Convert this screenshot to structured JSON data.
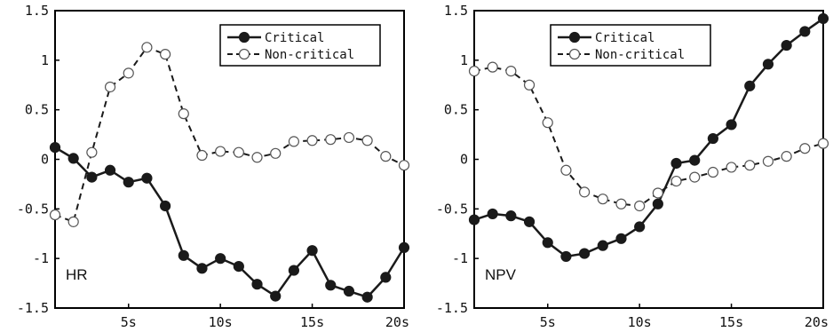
{
  "chart_data": [
    {
      "type": "line",
      "panel_label": "HR",
      "x": [
        1,
        2,
        3,
        4,
        5,
        6,
        7,
        8,
        9,
        10,
        11,
        12,
        13,
        14,
        15,
        16,
        17,
        18,
        19,
        20
      ],
      "xlim": [
        1,
        20
      ],
      "xticks": [
        5,
        10,
        15,
        20
      ],
      "xtick_labels": [
        "5s",
        "10s",
        "15s",
        "20s"
      ],
      "ylim": [
        -1.5,
        1.5
      ],
      "yticks": [
        1.5,
        1,
        0.5,
        0,
        -0.5,
        -1,
        -1.5
      ],
      "ytick_labels": [
        "1.5",
        "1",
        "0.5",
        "0",
        "-0.5",
        "-1",
        "-1.5"
      ],
      "legend_position": "top-right",
      "series": [
        {
          "name": "Critical",
          "marker": "filled-circle",
          "line": "solid",
          "values": [
            0.12,
            0.01,
            -0.18,
            -0.11,
            -0.23,
            -0.19,
            -0.47,
            -0.97,
            -1.1,
            -1.0,
            -1.08,
            -1.26,
            -1.38,
            -1.12,
            -0.92,
            -1.27,
            -1.33,
            -1.39,
            -1.19,
            -0.89
          ]
        },
        {
          "name": "Non-critical",
          "marker": "open-circle",
          "line": "dashed",
          "values": [
            -0.56,
            -0.63,
            0.07,
            0.73,
            0.87,
            1.13,
            1.06,
            0.46,
            0.04,
            0.08,
            0.07,
            0.02,
            0.06,
            0.18,
            0.19,
            0.2,
            0.22,
            0.19,
            0.03,
            -0.06
          ]
        }
      ]
    },
    {
      "type": "line",
      "panel_label": "NPV",
      "x": [
        1,
        2,
        3,
        4,
        5,
        6,
        7,
        8,
        9,
        10,
        11,
        12,
        13,
        14,
        15,
        16,
        17,
        18,
        19,
        20
      ],
      "xlim": [
        1,
        20
      ],
      "xticks": [
        5,
        10,
        15,
        20
      ],
      "xtick_labels": [
        "5s",
        "10s",
        "15s",
        "20s"
      ],
      "ylim": [
        -1.5,
        1.5
      ],
      "yticks": [
        1.5,
        1,
        0.5,
        0,
        -0.5,
        -1,
        -1.5
      ],
      "ytick_labels": [
        "1.5",
        "1",
        "0.5",
        "0",
        "-0.5",
        "-1",
        "-1.5"
      ],
      "legend_position": "top-right",
      "series": [
        {
          "name": "Critical",
          "marker": "filled-circle",
          "line": "solid",
          "values": [
            -0.61,
            -0.55,
            -0.57,
            -0.63,
            -0.84,
            -0.98,
            -0.95,
            -0.87,
            -0.8,
            -0.68,
            -0.45,
            -0.04,
            -0.01,
            0.21,
            0.35,
            0.74,
            0.96,
            1.15,
            1.29,
            1.42
          ]
        },
        {
          "name": "Non-critical",
          "marker": "open-circle",
          "line": "dashed",
          "values": [
            0.89,
            0.93,
            0.89,
            0.75,
            0.37,
            -0.11,
            -0.33,
            -0.4,
            -0.45,
            -0.47,
            -0.34,
            -0.22,
            -0.18,
            -0.13,
            -0.08,
            -0.06,
            -0.02,
            0.03,
            0.11,
            0.16
          ]
        }
      ]
    }
  ],
  "colors": {
    "critical": "#1a1a1a",
    "noncritical_fill": "#ffffff",
    "noncritical_stroke": "#555555",
    "axis": "#000000"
  }
}
